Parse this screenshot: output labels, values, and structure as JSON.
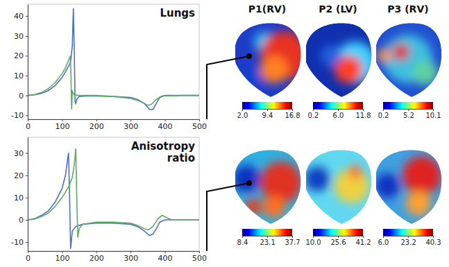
{
  "chart_data": [
    {
      "type": "line",
      "title": "Lungs",
      "xlim": [
        0,
        500
      ],
      "ylim": [
        -12,
        46
      ],
      "xticks": [
        0,
        100,
        200,
        300,
        400,
        500
      ],
      "yticks": [
        -10,
        0,
        10,
        20,
        30,
        40
      ],
      "series": [
        {
          "color": "#4a6fc4",
          "x": [
            0,
            20,
            40,
            60,
            80,
            100,
            110,
            120,
            125,
            130,
            133,
            136,
            138,
            140,
            143,
            150,
            170,
            200,
            250,
            300,
            320,
            340,
            355,
            365,
            375,
            385,
            400,
            450,
            500
          ],
          "values": [
            0,
            0.3,
            1,
            2.5,
            5,
            9,
            12,
            15,
            17,
            25,
            44,
            20,
            -3,
            -4,
            -2,
            -0.5,
            -0.3,
            -0.3,
            -0.5,
            -1,
            -2,
            -4,
            -7,
            -7,
            -4,
            -1,
            0,
            0,
            0
          ]
        },
        {
          "color": "#5cad63",
          "x": [
            0,
            20,
            40,
            60,
            80,
            100,
            110,
            120,
            124,
            126,
            128,
            130,
            135,
            145,
            200,
            250,
            300,
            320,
            340,
            350,
            360,
            375,
            390,
            450,
            500
          ],
          "values": [
            0,
            0.5,
            1.5,
            3.5,
            6.5,
            11,
            14,
            18,
            20,
            10,
            -7,
            2,
            0.5,
            0,
            0,
            -0.5,
            -1.5,
            -2.5,
            -4,
            -5,
            -4.5,
            -2,
            -0.3,
            0,
            0
          ]
        }
      ]
    },
    {
      "type": "line",
      "title": "Anisotropy ratio",
      "xlim": [
        0,
        500
      ],
      "ylim": [
        -14,
        37
      ],
      "xticks": [
        0,
        100,
        200,
        300,
        400,
        500
      ],
      "yticks": [
        -10,
        0,
        10,
        20,
        30
      ],
      "series": [
        {
          "color": "#4a6fc4",
          "x": [
            0,
            20,
            40,
            60,
            80,
            100,
            110,
            116,
            119,
            122,
            125,
            130,
            140,
            160,
            200,
            250,
            300,
            320,
            340,
            355,
            365,
            375,
            385,
            400,
            450,
            500
          ],
          "values": [
            0,
            0.5,
            2,
            4,
            8,
            14,
            20,
            27,
            30,
            10,
            -13,
            -5,
            -3,
            -2,
            -1.5,
            -1.5,
            -2,
            -3,
            -5,
            -7,
            -6.5,
            -4,
            -1,
            0,
            0,
            0
          ]
        },
        {
          "color": "#5cad63",
          "x": [
            0,
            20,
            40,
            60,
            80,
            100,
            120,
            130,
            136,
            140,
            143,
            146,
            150,
            160,
            200,
            250,
            300,
            320,
            340,
            352,
            365,
            380,
            392,
            405,
            420,
            450,
            500
          ],
          "values": [
            0,
            0.3,
            1.5,
            3,
            6,
            10,
            15,
            19,
            25,
            32,
            10,
            -8,
            -4,
            -2,
            -1,
            -1,
            -1.5,
            -2.5,
            -4,
            -4.5,
            -3,
            0.5,
            2,
            1,
            0,
            0,
            0
          ]
        }
      ]
    },
    {
      "type": "map",
      "title": "P1(RV)",
      "colorbar": {
        "range": [
          2.0,
          16.8
        ],
        "ticks": [
          {
            "value": 2.0,
            "label": "2.0"
          },
          9.4,
          16.8
        ]
      }
    },
    {
      "type": "map",
      "title": "P2 (LV)",
      "colorbar": {
        "range": [
          0.2,
          11.8
        ],
        "ticks": [
          0.2,
          {
            "value": 6.0,
            "label": "6.0"
          },
          11.8
        ]
      }
    },
    {
      "type": "map",
      "title": "P3 (RV)",
      "colorbar": {
        "range": [
          0.2,
          10.1
        ],
        "ticks": [
          0.2,
          5.2,
          10.1
        ]
      }
    },
    {
      "type": "map",
      "colorbar": {
        "range": [
          8.4,
          37.7
        ],
        "ticks": [
          8.4,
          23.1,
          37.7
        ]
      }
    },
    {
      "type": "map",
      "colorbar": {
        "range": [
          10.0,
          41.2
        ],
        "ticks": [
          {
            "value": 10.0,
            "label": "10.0"
          },
          25.6,
          41.2
        ]
      }
    },
    {
      "type": "map",
      "colorbar": {
        "range": [
          6.0,
          40.3
        ],
        "ticks": [
          {
            "value": 6.0,
            "label": "6.0"
          },
          23.2,
          40.3
        ]
      }
    }
  ]
}
